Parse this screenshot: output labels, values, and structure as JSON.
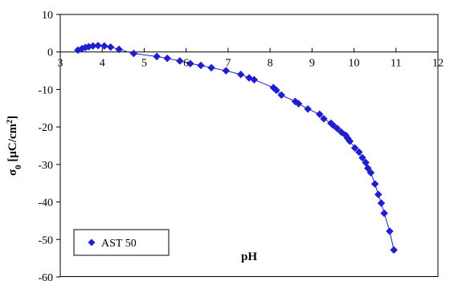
{
  "chart_data": {
    "type": "scatter",
    "xlabel": "pH",
    "ylabel": "σ",
    "ylabel_sub": "0",
    "ylabel_unit_open": " [μC/cm",
    "ylabel_unit_sup": "2",
    "ylabel_unit_close": "]",
    "xlim": [
      3,
      12
    ],
    "ylim": [
      -60,
      10
    ],
    "x_ticks": [
      3,
      4,
      5,
      6,
      7,
      8,
      9,
      10,
      11,
      12
    ],
    "y_ticks": [
      10,
      0,
      -10,
      -20,
      -30,
      -40,
      -50,
      -60
    ],
    "x_tick_labels": [
      "3",
      "4",
      "5",
      "6",
      "7",
      "8",
      "9",
      "10",
      "11",
      "12"
    ],
    "y_tick_labels": [
      "10",
      "0",
      "-10",
      "-20",
      "-30",
      "-40",
      "-50",
      "-60"
    ],
    "legend": {
      "position": "bottom-left"
    },
    "series": [
      {
        "name": "AST 50",
        "color": "#1f1fd0",
        "marker": "diamond",
        "line": true,
        "points": [
          [
            3.42,
            0.5
          ],
          [
            3.52,
            0.9
          ],
          [
            3.6,
            1.2
          ],
          [
            3.68,
            1.4
          ],
          [
            3.78,
            1.6
          ],
          [
            3.9,
            1.7
          ],
          [
            4.05,
            1.6
          ],
          [
            4.2,
            1.3
          ],
          [
            4.4,
            0.7
          ],
          [
            4.75,
            -0.4
          ],
          [
            5.3,
            -1.2
          ],
          [
            5.55,
            -1.7
          ],
          [
            5.85,
            -2.4
          ],
          [
            6.1,
            -3.1
          ],
          [
            6.35,
            -3.6
          ],
          [
            6.6,
            -4.2
          ],
          [
            6.95,
            -5.0
          ],
          [
            7.3,
            -6.0
          ],
          [
            7.5,
            -6.9
          ],
          [
            7.62,
            -7.4
          ],
          [
            8.08,
            -9.5
          ],
          [
            8.15,
            -10.2
          ],
          [
            8.27,
            -11.5
          ],
          [
            8.6,
            -13.2
          ],
          [
            8.68,
            -13.8
          ],
          [
            8.9,
            -15.2
          ],
          [
            9.18,
            -16.6
          ],
          [
            9.28,
            -17.8
          ],
          [
            9.45,
            -19.0
          ],
          [
            9.5,
            -19.5
          ],
          [
            9.6,
            -20.4
          ],
          [
            9.7,
            -21.4
          ],
          [
            9.8,
            -22.2
          ],
          [
            9.85,
            -23.0
          ],
          [
            9.9,
            -23.8
          ],
          [
            10.02,
            -25.6
          ],
          [
            10.12,
            -26.7
          ],
          [
            10.2,
            -28.2
          ],
          [
            10.28,
            -29.5
          ],
          [
            10.33,
            -31.0
          ],
          [
            10.4,
            -32.2
          ],
          [
            10.5,
            -35.2
          ],
          [
            10.58,
            -38.0
          ],
          [
            10.65,
            -40.3
          ],
          [
            10.72,
            -43.0
          ],
          [
            10.85,
            -47.8
          ],
          [
            10.95,
            -52.8
          ]
        ]
      }
    ]
  }
}
